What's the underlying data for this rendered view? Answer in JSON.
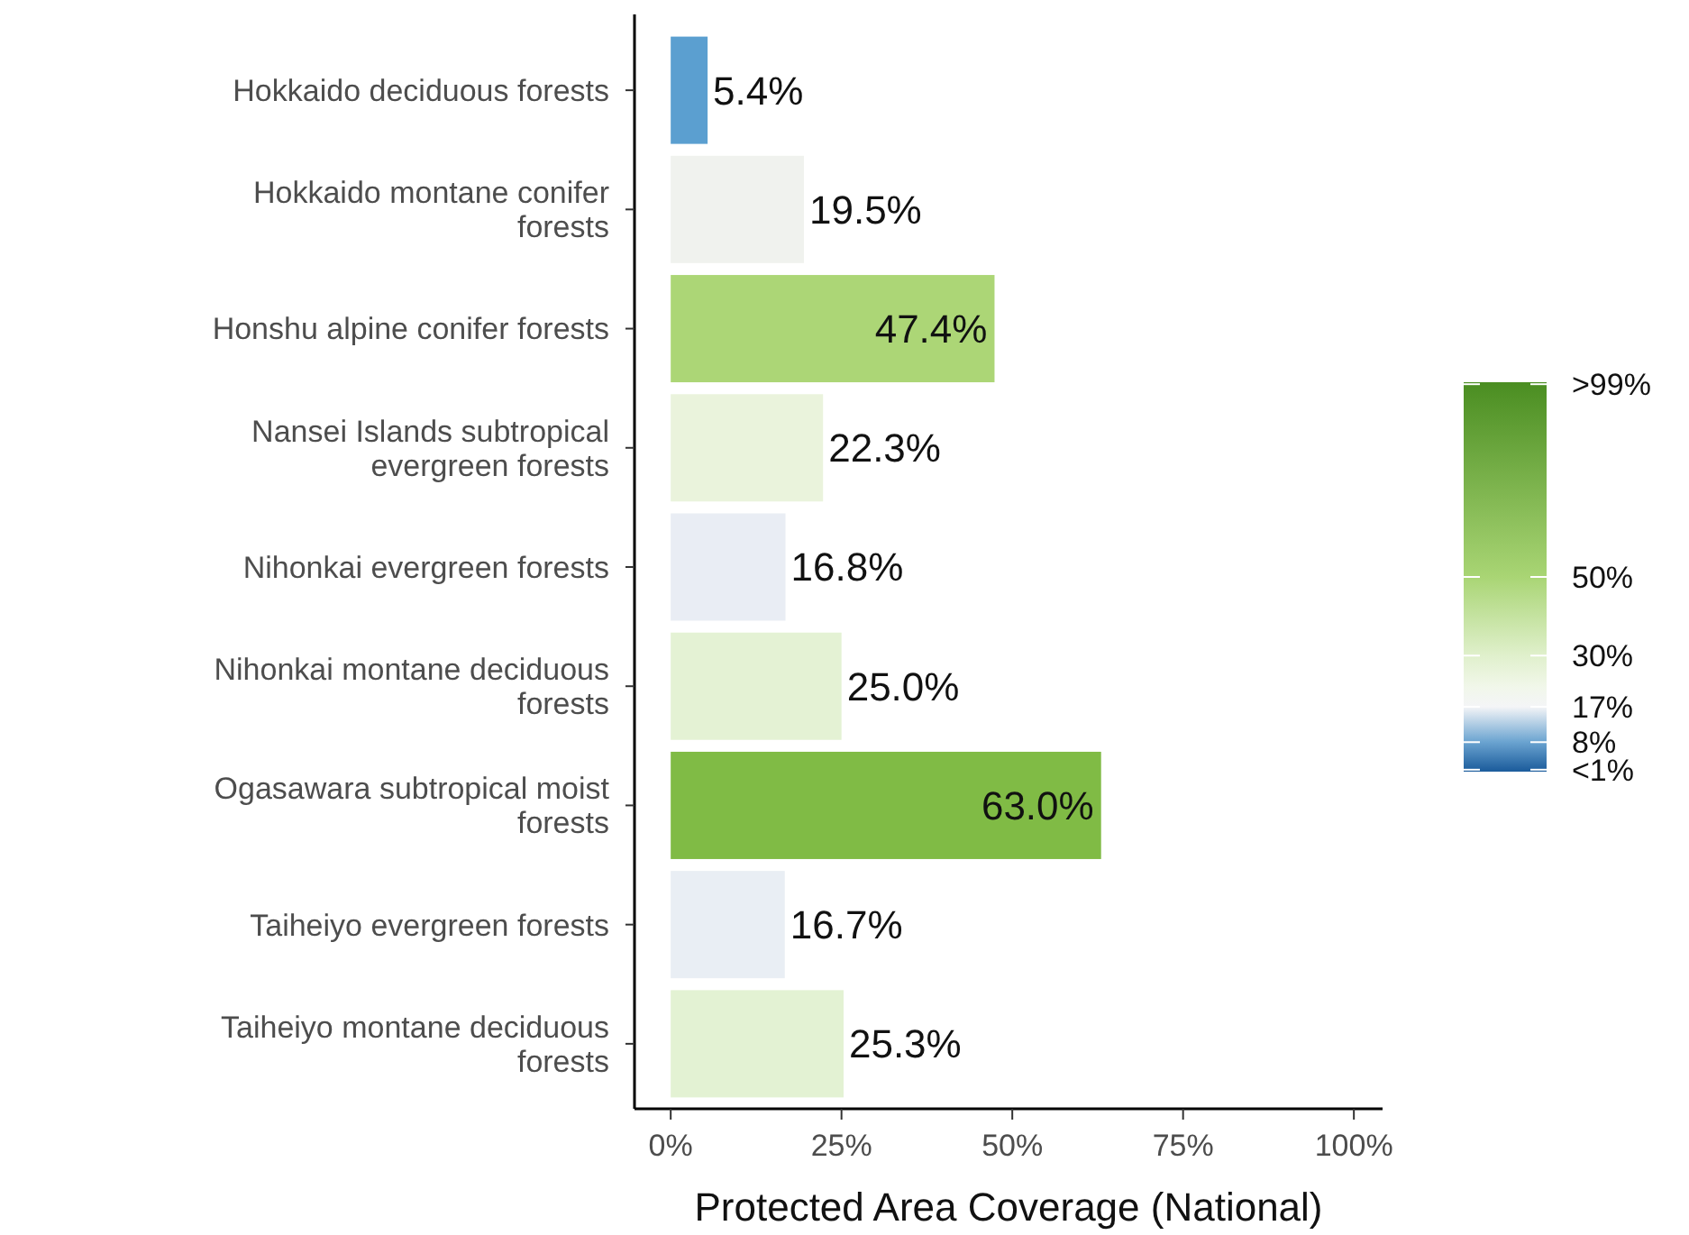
{
  "chart_data": {
    "type": "bar",
    "orientation": "horizontal",
    "xlabel": "Protected Area Coverage (National)",
    "categories": [
      "Hokkaido deciduous forests",
      "Hokkaido montane conifer forests",
      "Honshu alpine conifer forests",
      "Nansei Islands subtropical evergreen forests",
      "Nihonkai evergreen forests",
      "Nihonkai montane deciduous forests",
      "Ogasawara subtropical moist forests",
      "Taiheiyo evergreen forests",
      "Taiheiyo montane deciduous forests"
    ],
    "values": [
      5.4,
      19.5,
      47.4,
      22.3,
      16.8,
      25.0,
      63.0,
      16.7,
      25.3
    ],
    "value_labels": [
      "5.4%",
      "19.5%",
      "47.4%",
      "22.3%",
      "16.8%",
      "25.0%",
      "63.0%",
      "16.7%",
      "25.3%"
    ],
    "colors": [
      "#5b9fd0",
      "#f0f2ee",
      "#acd676",
      "#eaf3dc",
      "#e9edf4",
      "#e4f2d4",
      "#80bb45",
      "#e9eef4",
      "#e3f2d3"
    ],
    "xlim": [
      -5.3,
      104.2
    ],
    "xticks": [
      {
        "value": 0,
        "label": "0%"
      },
      {
        "value": 25,
        "label": "25%"
      },
      {
        "value": 50,
        "label": "50%"
      },
      {
        "value": 75,
        "label": "75%"
      },
      {
        "value": 100,
        "label": "100%"
      }
    ],
    "clim": [
      0.5,
      99.5
    ],
    "cticks": [
      {
        "value": 1,
        "label": "<1%"
      },
      {
        "value": 8,
        "label": "8%"
      },
      {
        "value": 17,
        "label": "17%"
      },
      {
        "value": 30,
        "label": "30%"
      },
      {
        "value": 50,
        "label": "50%"
      },
      {
        "value": 99,
        "label": ">99%"
      }
    ],
    "grid": false
  }
}
